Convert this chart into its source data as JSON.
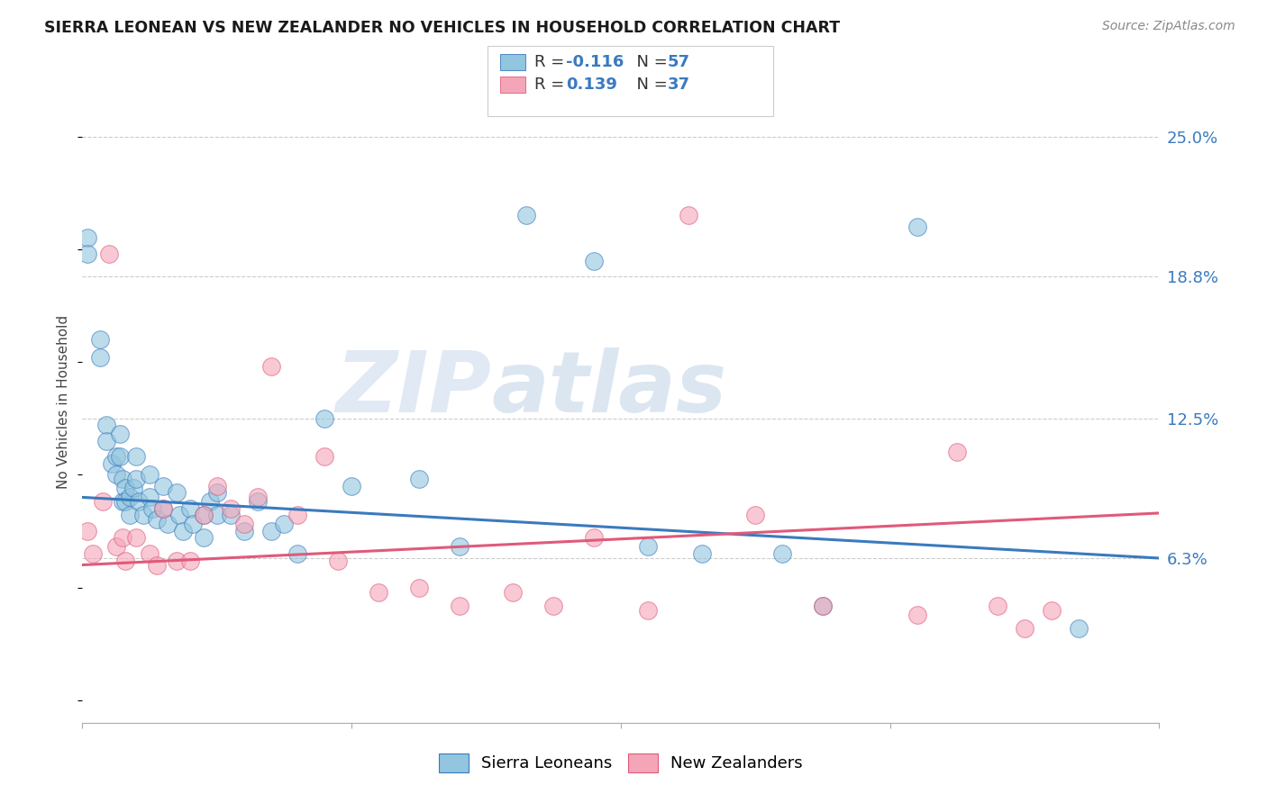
{
  "title": "SIERRA LEONEAN VS NEW ZEALANDER NO VEHICLES IN HOUSEHOLD CORRELATION CHART",
  "source": "Source: ZipAtlas.com",
  "ylabel": "No Vehicles in Household",
  "ytick_labels": [
    "6.3%",
    "12.5%",
    "18.8%",
    "25.0%"
  ],
  "ytick_values": [
    0.063,
    0.125,
    0.188,
    0.25
  ],
  "xmin": 0.0,
  "xmax": 0.08,
  "ymin": -0.01,
  "ymax": 0.275,
  "legend_label1": "Sierra Leoneans",
  "legend_label2": "New Zealanders",
  "color_blue": "#92c5de",
  "color_pink": "#f4a6b8",
  "line_color_blue": "#3a7abf",
  "line_color_pink": "#e05a7a",
  "watermark_zip": "ZIP",
  "watermark_atlas": "atlas",
  "blue_points_x": [
    0.0004,
    0.0004,
    0.0013,
    0.0013,
    0.0018,
    0.0018,
    0.0022,
    0.0025,
    0.0025,
    0.0028,
    0.0028,
    0.003,
    0.003,
    0.0032,
    0.0032,
    0.0035,
    0.0035,
    0.0038,
    0.004,
    0.004,
    0.0042,
    0.0045,
    0.005,
    0.005,
    0.0052,
    0.0055,
    0.006,
    0.006,
    0.0063,
    0.007,
    0.0072,
    0.0075,
    0.008,
    0.0082,
    0.009,
    0.009,
    0.0095,
    0.01,
    0.01,
    0.011,
    0.012,
    0.013,
    0.014,
    0.015,
    0.016,
    0.018,
    0.02,
    0.025,
    0.028,
    0.033,
    0.038,
    0.042,
    0.046,
    0.052,
    0.055,
    0.062,
    0.074
  ],
  "blue_points_y": [
    0.205,
    0.198,
    0.16,
    0.152,
    0.122,
    0.115,
    0.105,
    0.108,
    0.1,
    0.118,
    0.108,
    0.098,
    0.088,
    0.094,
    0.088,
    0.09,
    0.082,
    0.094,
    0.108,
    0.098,
    0.088,
    0.082,
    0.1,
    0.09,
    0.085,
    0.08,
    0.095,
    0.085,
    0.078,
    0.092,
    0.082,
    0.075,
    0.085,
    0.078,
    0.082,
    0.072,
    0.088,
    0.092,
    0.082,
    0.082,
    0.075,
    0.088,
    0.075,
    0.078,
    0.065,
    0.125,
    0.095,
    0.098,
    0.068,
    0.215,
    0.195,
    0.068,
    0.065,
    0.065,
    0.042,
    0.21,
    0.032
  ],
  "pink_points_x": [
    0.0004,
    0.0008,
    0.0015,
    0.002,
    0.0025,
    0.003,
    0.0032,
    0.004,
    0.005,
    0.0055,
    0.006,
    0.007,
    0.008,
    0.009,
    0.01,
    0.011,
    0.012,
    0.013,
    0.014,
    0.016,
    0.018,
    0.019,
    0.022,
    0.025,
    0.028,
    0.032,
    0.035,
    0.038,
    0.042,
    0.045,
    0.05,
    0.055,
    0.062,
    0.065,
    0.068,
    0.07,
    0.072
  ],
  "pink_points_y": [
    0.075,
    0.065,
    0.088,
    0.198,
    0.068,
    0.072,
    0.062,
    0.072,
    0.065,
    0.06,
    0.085,
    0.062,
    0.062,
    0.082,
    0.095,
    0.085,
    0.078,
    0.09,
    0.148,
    0.082,
    0.108,
    0.062,
    0.048,
    0.05,
    0.042,
    0.048,
    0.042,
    0.072,
    0.04,
    0.215,
    0.082,
    0.042,
    0.038,
    0.11,
    0.042,
    0.032,
    0.04
  ]
}
